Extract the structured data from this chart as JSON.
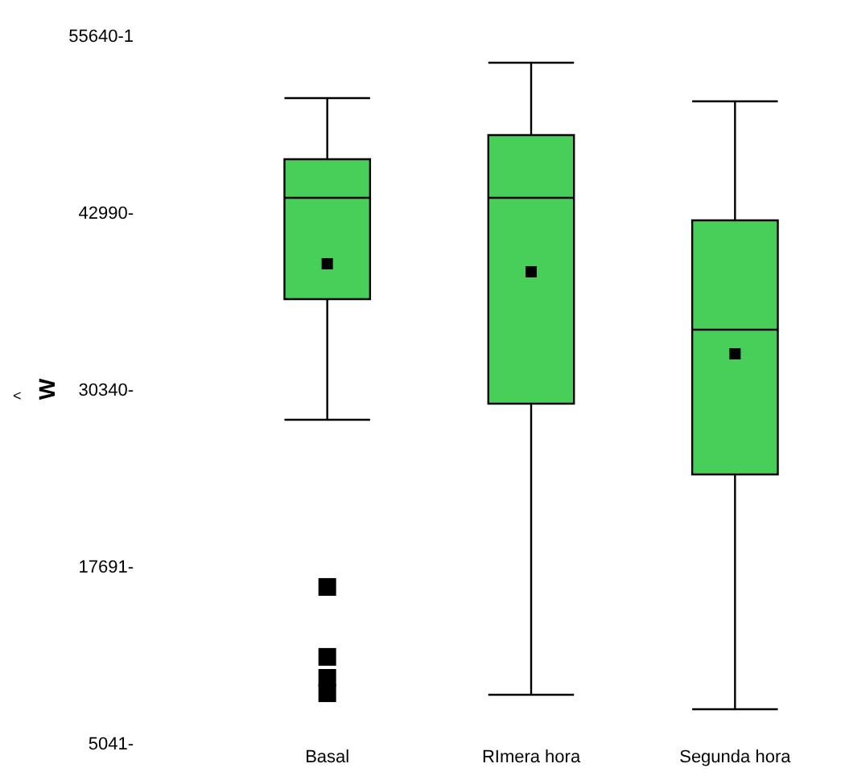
{
  "chart_data": {
    "type": "box",
    "ylabel": "W",
    "annotations": [
      "<"
    ],
    "categories": [
      "Basal",
      "RImera hora",
      "Segunda hora"
    ],
    "boxes": [
      {
        "low": 28155,
        "q1": 36780,
        "median": 44025,
        "q3": 46785,
        "high": 51155,
        "mean": 39310,
        "outliers": [
          16200,
          11200,
          9700,
          8600
        ]
      },
      {
        "low": 8490,
        "q1": 29305,
        "median": 44025,
        "q3": 48510,
        "high": 53685,
        "mean": 38735
      },
      {
        "low": 7455,
        "q1": 24245,
        "median": 34595,
        "q3": 42415,
        "high": 50925,
        "mean": 32870
      }
    ],
    "color": "#48cf5a",
    "marker": "square",
    "grid": false,
    "ylim": [
      5041,
      55640
    ],
    "yticks": [
      {
        "value": 5041,
        "label": "5041-"
      },
      {
        "value": 17691,
        "label": "17691-"
      },
      {
        "value": 30340,
        "label": "30340-"
      },
      {
        "value": 42990,
        "label": "42990-"
      },
      {
        "value": 55640,
        "label": "55640-1"
      }
    ]
  }
}
